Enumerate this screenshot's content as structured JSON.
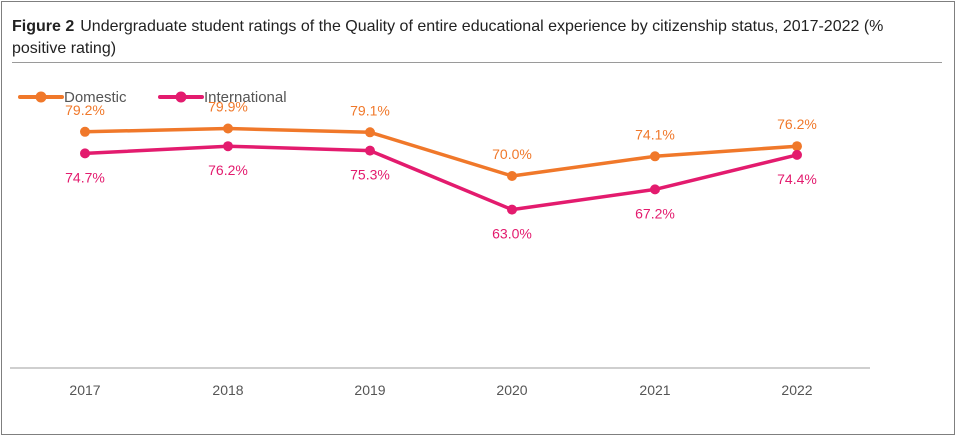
{
  "figure": {
    "label": "Figure 2",
    "title": "Undergraduate student ratings of the Quality of entire educational experience by citizenship status, 2017-2022 (% positive rating)"
  },
  "chart_data": {
    "type": "line",
    "categories": [
      "2017",
      "2018",
      "2019",
      "2020",
      "2021",
      "2022"
    ],
    "series": [
      {
        "name": "Domestic",
        "color": "#F0782A",
        "values": [
          79.2,
          79.9,
          79.1,
          70.0,
          74.1,
          76.2
        ],
        "labels": [
          "79.2%",
          "79.9%",
          "79.1%",
          "70.0%",
          "74.1%",
          "76.2%"
        ],
        "label_position": "above"
      },
      {
        "name": "International",
        "color": "#E31B6E",
        "values": [
          74.7,
          76.2,
          75.3,
          63.0,
          67.2,
          74.4
        ],
        "labels": [
          "74.7%",
          "76.2%",
          "75.3%",
          "63.0%",
          "67.2%",
          "74.4%"
        ],
        "label_position": "below"
      }
    ],
    "ylim": [
      30,
      90
    ],
    "grid": false,
    "legend_position": "top-left",
    "axis_color": "#BFBFBF"
  }
}
